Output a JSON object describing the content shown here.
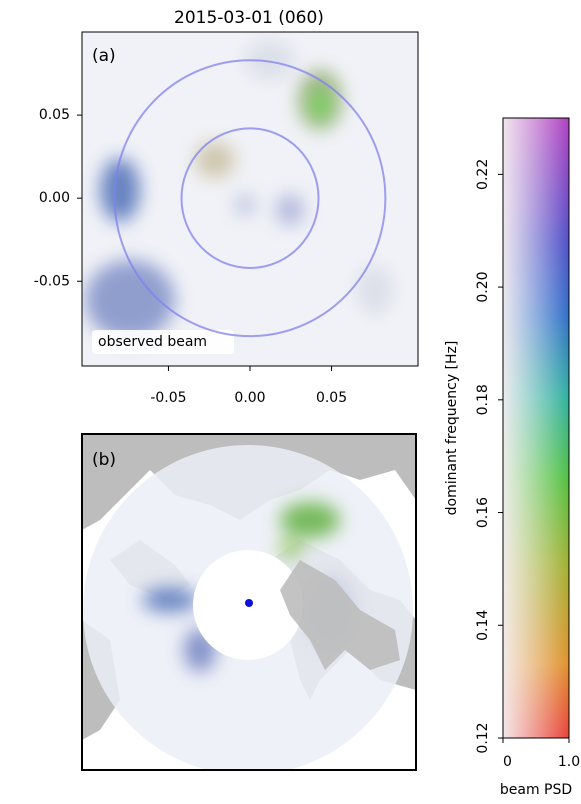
{
  "title": "2015-03-01 (060)",
  "chart_data": [
    {
      "type": "heatmap",
      "panel_label": "(a)",
      "annotation": "observed beam",
      "xlim": [
        -0.103,
        0.103
      ],
      "ylim": [
        -0.101,
        0.1
      ],
      "xticks": [
        -0.05,
        {
          "value": 0,
          "label": "0.00"
        },
        0.05
      ],
      "yticks": [
        -0.05,
        {
          "value": 0,
          "label": "0.00"
        },
        0.05
      ],
      "circle_radii": [
        0.042,
        0.083
      ],
      "circle_color": "#8080ee"
    },
    {
      "type": "map",
      "panel_label": "(b)"
    },
    {
      "type": "colorbar",
      "ylabel": "dominant frequency [Hz]",
      "xlabel": "beam PSD",
      "ylim": [
        0.12,
        0.23
      ],
      "yticks": [
        0.12,
        0.14,
        0.16,
        0.18,
        {
          "value": 0.2,
          "label": "0.20"
        },
        0.22
      ],
      "xlim": [
        0,
        1
      ],
      "xticks": [
        0,
        {
          "value": 1,
          "label": "1.0"
        }
      ]
    }
  ]
}
